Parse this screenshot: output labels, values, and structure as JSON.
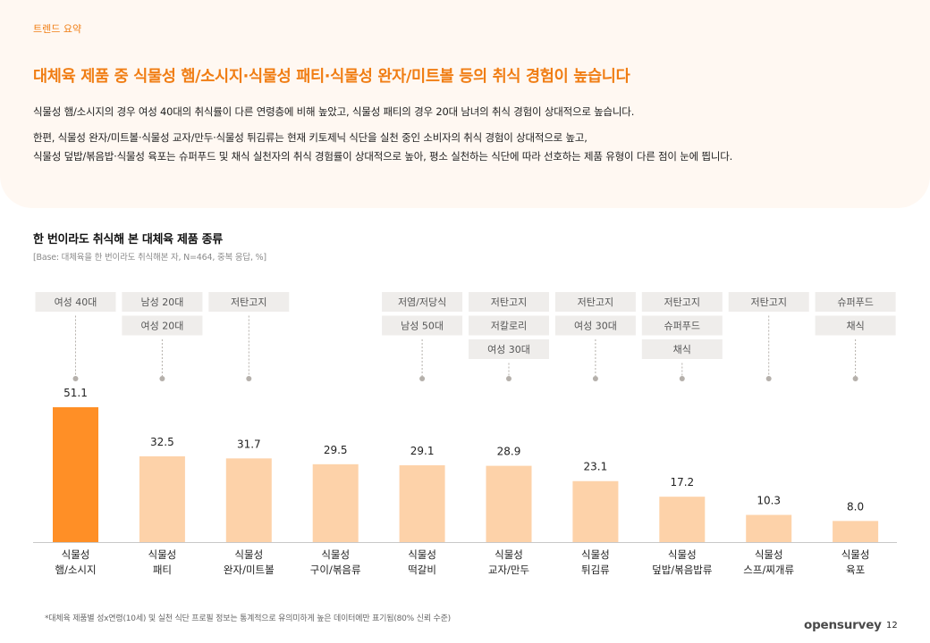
{
  "header": {
    "eyebrow": "트렌드 요약",
    "headline": "대체육 제품 중 식물성 햄/소시지·식물성 패티·식물성 완자/미트볼 등의 취식 경험이 높습니다",
    "paragraph1": "식물성 햄/소시지의 경우 여성 40대의 취식률이 다른 연령층에 비해 높았고, 식물성 패티의 경우 20대 남녀의 취식 경험이 상대적으로 높습니다.",
    "paragraph2_line1": "한편, 식물성 완자/미트볼·식물성 교자/만두·식물성 튀김류는 현재 키토제닉 식단을 실천 중인 소비자의 취식 경험이 상대적으로 높고,",
    "paragraph2_line2": "식물성 덮밥/볶음밥·식물성 육포는 슈퍼푸드 및 채식 실천자의 취식 경험률이 상대적으로 높아, 평소 실천하는 식단에 따라 선호하는 제품 유형이 다른 점이 눈에 띕니다."
  },
  "chart_section": {
    "title": "한 번이라도 취식해 본 대체육 제품 종류",
    "base_note": "[Base: 대체육을 한 번이라도 취식해본 자, N=464, 중복 응답, %]"
  },
  "chart_data": {
    "type": "bar",
    "title": "한 번이라도 취식해 본 대체육 제품 종류",
    "subtitle": "[Base: 대체육을 한 번이라도 취식해본 자, N=464, 중복 응답, %]",
    "xlabel": "",
    "ylabel": "%",
    "ylim": [
      0,
      60
    ],
    "grid": false,
    "categories": [
      [
        "식물성",
        "햄/소시지"
      ],
      [
        "식물성",
        "패티"
      ],
      [
        "식물성",
        "완자/미트볼"
      ],
      [
        "식물성",
        "구이/볶음류"
      ],
      [
        "식물성",
        "떡갈비"
      ],
      [
        "식물성",
        "교자/만두"
      ],
      [
        "식물성",
        "튀김류"
      ],
      [
        "식물성",
        "덮밥/볶음밥류"
      ],
      [
        "식물성",
        "스프/찌개류"
      ],
      [
        "식물성",
        "육포"
      ]
    ],
    "values": [
      51.1,
      32.5,
      31.7,
      29.5,
      29.1,
      28.9,
      23.1,
      17.2,
      10.3,
      8.0
    ],
    "value_labels": [
      "51.1",
      "32.5",
      "31.7",
      "29.5",
      "29.1",
      "28.9",
      "23.1",
      "17.2",
      "10.3",
      "8.0"
    ],
    "highlight_index": 0,
    "annotations": [
      [
        "여성 40대"
      ],
      [
        "남성 20대",
        "여성 20대"
      ],
      [
        "저탄고지"
      ],
      [],
      [
        "저염/저당식",
        "남성 50대"
      ],
      [
        "저탄고지",
        "저칼로리",
        "여성 30대"
      ],
      [
        "저탄고지",
        "여성 30대"
      ],
      [
        "저탄고지",
        "슈퍼푸드",
        "채식"
      ],
      [
        "저탄고지"
      ],
      [
        "슈퍼푸드",
        "채식"
      ]
    ],
    "colors": {
      "highlight": "#ff8f26",
      "bar": "#fdd2a9",
      "tag_bg": "#efedeb",
      "tag_text": "#555555",
      "connector": "#b5b0ab",
      "axis": "#c8c8c8"
    }
  },
  "footer": {
    "footnote": "*대체육 제품별 성x연령(10세) 및 실천 식단 프로필 정보는 통계적으로 유의미하게 높은 데이터에만 표기됨(80% 신뢰 수준)",
    "brand": "opensurvey",
    "page_number": "12"
  }
}
